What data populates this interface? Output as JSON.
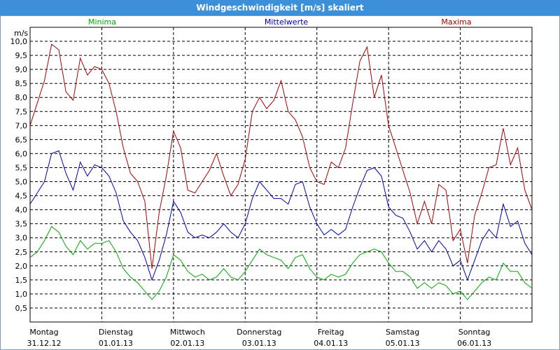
{
  "window": {
    "title": "Windgeschwindigkeit [m/s] skaliert"
  },
  "chart_data": {
    "type": "line",
    "title": "Windgeschwindigkeit [m/s] skaliert",
    "ylabel": "m/s",
    "ylim": [
      0.5,
      10.0
    ],
    "yticks": [
      "10,0",
      "9,5",
      "9,0",
      "8,5",
      "8,0",
      "7,5",
      "7,0",
      "6,5",
      "6,0",
      "5,5",
      "5,0",
      "4,5",
      "4,0",
      "3,5",
      "3,0",
      "2,5",
      "2,0",
      "1,5",
      "1,0",
      "0,5"
    ],
    "xlim": [
      0,
      7
    ],
    "days": [
      {
        "day": "Montag",
        "date": "31.12.12"
      },
      {
        "day": "Dienstag",
        "date": "01.01.13"
      },
      {
        "day": "Mittwoch",
        "date": "02.01.13"
      },
      {
        "day": "Donnerstag",
        "date": "03.01.13"
      },
      {
        "day": "Freitag",
        "date": "04.01.13"
      },
      {
        "day": "Samstag",
        "date": "05.01.13"
      },
      {
        "day": "Sonntag",
        "date": "06.01.13"
      }
    ],
    "grid": true,
    "legend_position": "top",
    "series": [
      {
        "name": "Minima",
        "color": "#00aa00",
        "x": [
          0.0,
          0.1,
          0.2,
          0.3,
          0.4,
          0.5,
          0.6,
          0.7,
          0.8,
          0.9,
          1.0,
          1.1,
          1.2,
          1.3,
          1.4,
          1.5,
          1.6,
          1.7,
          1.8,
          1.9,
          2.0,
          2.1,
          2.2,
          2.3,
          2.4,
          2.5,
          2.6,
          2.7,
          2.8,
          2.9,
          3.0,
          3.1,
          3.2,
          3.3,
          3.4,
          3.5,
          3.6,
          3.7,
          3.8,
          3.9,
          4.0,
          4.1,
          4.2,
          4.3,
          4.4,
          4.5,
          4.6,
          4.7,
          4.8,
          4.9,
          5.0,
          5.1,
          5.2,
          5.3,
          5.4,
          5.5,
          5.6,
          5.7,
          5.8,
          5.9,
          6.0,
          6.1,
          6.2,
          6.3,
          6.4,
          6.5,
          6.6,
          6.7,
          6.8,
          6.9,
          7.0
        ],
        "values": [
          2.3,
          2.5,
          2.9,
          3.4,
          3.2,
          2.7,
          2.4,
          2.9,
          2.6,
          2.8,
          2.8,
          2.9,
          2.5,
          1.9,
          1.6,
          1.4,
          1.1,
          0.8,
          1.1,
          1.6,
          2.4,
          2.2,
          1.8,
          1.6,
          1.7,
          1.5,
          1.6,
          1.9,
          1.6,
          1.5,
          1.8,
          2.2,
          2.6,
          2.4,
          2.3,
          2.2,
          1.9,
          2.3,
          2.4,
          1.9,
          1.6,
          1.5,
          1.7,
          1.6,
          1.7,
          2.1,
          2.4,
          2.5,
          2.6,
          2.5,
          2.1,
          1.8,
          1.8,
          1.6,
          1.2,
          1.4,
          1.2,
          1.4,
          1.3,
          1.0,
          1.1,
          0.8,
          1.1,
          1.4,
          1.6,
          1.5,
          2.1,
          1.8,
          1.8,
          1.4,
          1.2
        ]
      },
      {
        "name": "Mittelwerte",
        "color": "#0000aa",
        "x": [
          0.0,
          0.1,
          0.2,
          0.3,
          0.4,
          0.5,
          0.6,
          0.7,
          0.8,
          0.9,
          1.0,
          1.1,
          1.2,
          1.3,
          1.4,
          1.5,
          1.6,
          1.7,
          1.8,
          1.9,
          2.0,
          2.1,
          2.2,
          2.3,
          2.4,
          2.5,
          2.6,
          2.7,
          2.8,
          2.9,
          3.0,
          3.1,
          3.2,
          3.3,
          3.4,
          3.5,
          3.6,
          3.7,
          3.8,
          3.9,
          4.0,
          4.1,
          4.2,
          4.3,
          4.4,
          4.5,
          4.6,
          4.7,
          4.8,
          4.9,
          5.0,
          5.1,
          5.2,
          5.3,
          5.4,
          5.5,
          5.6,
          5.7,
          5.8,
          5.9,
          6.0,
          6.1,
          6.2,
          6.3,
          6.4,
          6.5,
          6.6,
          6.7,
          6.8,
          6.9,
          7.0
        ],
        "values": [
          4.2,
          4.6,
          5.0,
          6.0,
          6.1,
          5.3,
          4.7,
          5.7,
          5.2,
          5.6,
          5.5,
          5.2,
          4.6,
          3.6,
          3.2,
          2.9,
          2.3,
          1.5,
          2.2,
          3.1,
          4.3,
          3.9,
          3.2,
          3.0,
          3.1,
          3.0,
          3.2,
          3.5,
          3.2,
          3.0,
          3.5,
          4.4,
          5.0,
          4.7,
          4.4,
          4.4,
          4.2,
          4.9,
          5.0,
          4.1,
          3.5,
          3.1,
          3.3,
          3.1,
          3.3,
          4.1,
          4.8,
          5.4,
          5.5,
          5.2,
          4.1,
          3.8,
          3.7,
          3.2,
          2.6,
          2.9,
          2.5,
          2.9,
          2.6,
          2.0,
          2.2,
          1.5,
          2.2,
          2.9,
          3.3,
          3.0,
          4.2,
          3.4,
          3.6,
          2.8,
          2.4
        ]
      },
      {
        "name": "Maxima",
        "color": "#aa0000",
        "x": [
          0.0,
          0.1,
          0.2,
          0.3,
          0.4,
          0.5,
          0.6,
          0.7,
          0.8,
          0.9,
          1.0,
          1.1,
          1.2,
          1.3,
          1.4,
          1.5,
          1.6,
          1.7,
          1.8,
          1.9,
          2.0,
          2.1,
          2.2,
          2.3,
          2.4,
          2.5,
          2.6,
          2.7,
          2.8,
          2.9,
          3.0,
          3.1,
          3.2,
          3.3,
          3.4,
          3.5,
          3.6,
          3.7,
          3.8,
          3.9,
          4.0,
          4.1,
          4.2,
          4.3,
          4.4,
          4.5,
          4.6,
          4.7,
          4.8,
          4.9,
          5.0,
          5.1,
          5.2,
          5.3,
          5.4,
          5.5,
          5.6,
          5.7,
          5.8,
          5.9,
          6.0,
          6.1,
          6.2,
          6.3,
          6.4,
          6.5,
          6.6,
          6.7,
          6.8,
          6.9,
          7.0
        ],
        "values": [
          7.0,
          7.8,
          8.6,
          9.9,
          9.7,
          8.2,
          7.9,
          9.4,
          8.8,
          9.1,
          9.0,
          8.5,
          7.5,
          6.2,
          5.3,
          5.0,
          4.3,
          1.9,
          3.9,
          5.2,
          6.8,
          6.2,
          4.7,
          4.6,
          5.0,
          5.4,
          6.0,
          5.2,
          4.5,
          4.9,
          5.8,
          7.5,
          8.0,
          7.6,
          7.9,
          8.6,
          7.5,
          7.2,
          6.6,
          5.5,
          5.0,
          4.9,
          5.7,
          5.5,
          6.2,
          7.8,
          9.3,
          9.8,
          8.0,
          8.8,
          7.0,
          6.2,
          5.4,
          4.6,
          3.5,
          4.3,
          3.5,
          4.9,
          4.7,
          2.9,
          3.3,
          2.1,
          3.8,
          4.6,
          5.5,
          5.6,
          6.9,
          5.6,
          6.2,
          4.7,
          4.0
        ]
      }
    ]
  }
}
